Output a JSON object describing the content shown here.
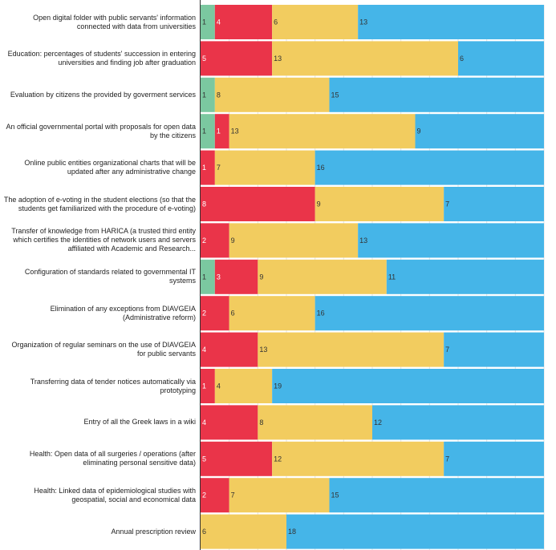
{
  "chart_data": {
    "type": "bar",
    "orientation": "horizontal",
    "stacked": true,
    "categories": [
      "Open digital folder with public servants' information connected with data from universities",
      "Education: percentages of students' succession in entering universities and finding job after graduation",
      "Evaluation by citizens the provided by goverment services",
      "An official governmental portal with proposals for open data by the citizens",
      "Online public entities organizational charts that will be updated after any administrative change",
      "The adoption of e-voting in the student elections (so that the students get familiarized with the procedure of e-voting)",
      "Transfer of knowledge from HARICA (a trusted third entity which certifies the identities of network users and servers affiliated with Academic and Research...",
      "Configuration of standards related to governmental IT systems",
      "Elimination of any exceptions from DIAVGEIA (Administrative reform)",
      "Organization of regular seminars on the use of DIAVGEIA for public servants",
      "Transferring data of tender notices automatically via prototyping",
      "Entry of all the Greek laws in a wiki",
      "Health: Open data of all surgeries / operations (after eliminating personal sensitive data)",
      "Health: Linked data of epidemiological studies with geospatial, social and economical data",
      "Annual prescription review"
    ],
    "series": [
      {
        "color": "#7bc8a0",
        "values": [
          1,
          0,
          1,
          1,
          0,
          0,
          0,
          1,
          0,
          0,
          0,
          0,
          0,
          0,
          0
        ]
      },
      {
        "color": "#ea3449",
        "values": [
          4,
          5,
          0,
          1,
          1,
          8,
          2,
          3,
          2,
          4,
          1,
          4,
          5,
          2,
          0
        ]
      },
      {
        "color": "#f2cc5f",
        "values": [
          6,
          13,
          8,
          13,
          7,
          9,
          9,
          9,
          6,
          13,
          4,
          8,
          12,
          7,
          6
        ]
      },
      {
        "color": "#45b5e8",
        "values": [
          13,
          6,
          15,
          9,
          16,
          7,
          13,
          11,
          16,
          7,
          19,
          12,
          7,
          15,
          18
        ]
      }
    ],
    "xlim": [
      0,
      24
    ],
    "grid": true,
    "legend": "none",
    "title": "",
    "xlabel": "",
    "ylabel": ""
  }
}
